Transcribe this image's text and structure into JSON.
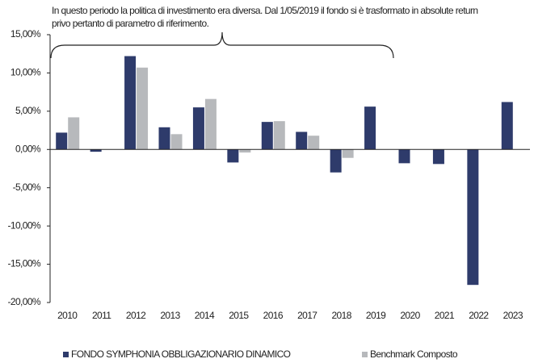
{
  "chart_data": {
    "type": "bar",
    "annotation": [
      "In questo periodo la politica di investimento era diversa. Dal 1/05/2019 il fondo si è trasformato in absolute return",
      "privo pertanto di parametro di riferimento."
    ],
    "categories": [
      "2010",
      "2011",
      "2012",
      "2013",
      "2014",
      "2015",
      "2016",
      "2017",
      "2018",
      "2019",
      "2020",
      "2021",
      "2022",
      "2023"
    ],
    "series": [
      {
        "name": "FONDO SYMPHONIA OBBLIGAZIONARIO DINAMICO",
        "color": "#2e3b6b",
        "values": [
          2.2,
          -0.3,
          12.2,
          2.9,
          5.5,
          -1.7,
          3.6,
          2.3,
          -3.0,
          5.6,
          -1.8,
          -1.9,
          -17.7,
          6.2
        ]
      },
      {
        "name": "Benchmark Composto",
        "color": "#b7b9bc",
        "values": [
          4.2,
          null,
          10.7,
          2.0,
          6.6,
          -0.4,
          3.7,
          1.8,
          -1.1,
          null,
          null,
          null,
          null,
          null
        ]
      }
    ],
    "ylim": [
      -20,
      15
    ],
    "yticks": [
      {
        "value": 15,
        "label": "15,00%"
      },
      {
        "value": 10,
        "label": "10,00%"
      },
      {
        "value": 5,
        "label": "5,00%"
      },
      {
        "value": 0,
        "label": "0,00%"
      },
      {
        "value": -5,
        "label": "-5,00%"
      },
      {
        "value": -10,
        "label": "-10,00%"
      },
      {
        "value": -15,
        "label": "-15,00%"
      },
      {
        "value": -20,
        "label": "-20,00%"
      }
    ],
    "legend": "bottom"
  }
}
